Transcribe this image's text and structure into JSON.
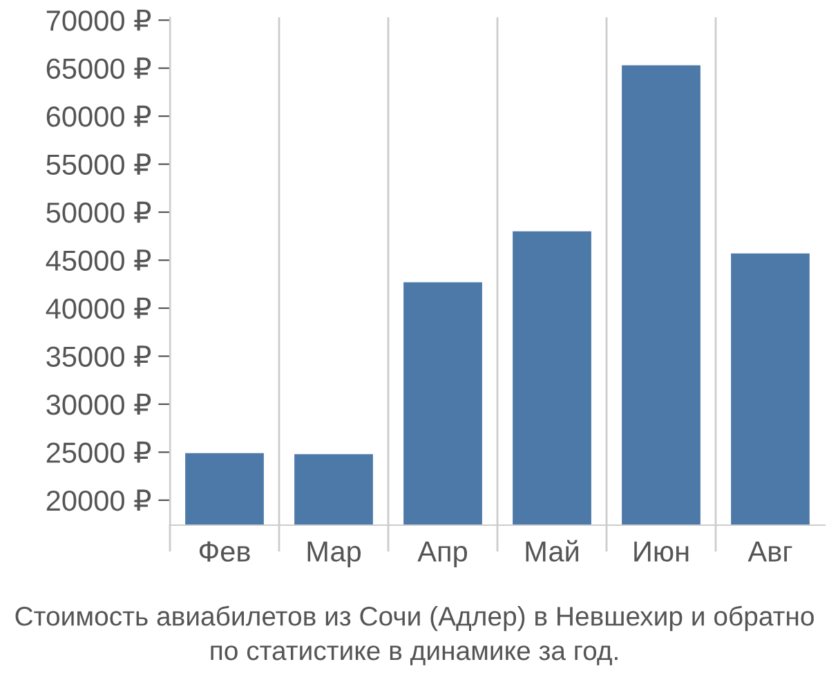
{
  "chart_data": {
    "type": "bar",
    "categories": [
      "Фев",
      "Мар",
      "Апр",
      "Май",
      "Июн",
      "Авг"
    ],
    "values": [
      24900,
      24800,
      42700,
      48000,
      65300,
      45700
    ],
    "color": "#4d79a8",
    "ylim": [
      17400,
      70300
    ],
    "yticks": [
      {
        "value": 20000,
        "label": "20000 ₽"
      },
      {
        "value": 25000,
        "label": "25000 ₽"
      },
      {
        "value": 30000,
        "label": "30000 ₽"
      },
      {
        "value": 35000,
        "label": "35000 ₽"
      },
      {
        "value": 40000,
        "label": "40000 ₽"
      },
      {
        "value": 45000,
        "label": "45000 ₽"
      },
      {
        "value": 50000,
        "label": "50000 ₽"
      },
      {
        "value": 55000,
        "label": "55000 ₽"
      },
      {
        "value": 60000,
        "label": "60000 ₽"
      },
      {
        "value": 65000,
        "label": "65000 ₽"
      },
      {
        "value": 70000,
        "label": "70000 ₽"
      }
    ],
    "grid": "x",
    "annotations": [
      "Стоимость авиабилетов из Сочи (Адлер) в Невшехир и обратно",
      "по статистике в динамике за год."
    ]
  }
}
